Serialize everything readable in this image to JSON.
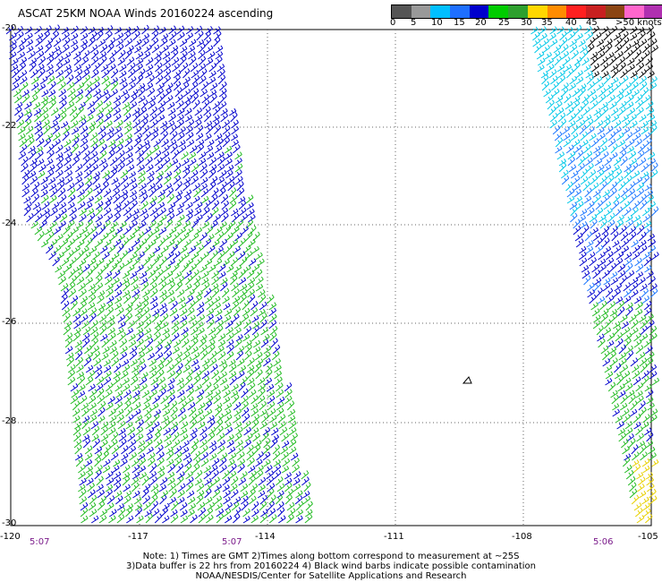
{
  "title": "ASCAT 25KM NOAA Winds 20160224 ascending",
  "legend": {
    "colors": [
      "#555555",
      "#999999",
      "#00bfff",
      "#1e6fff",
      "#0000cd",
      "#00cc00",
      "#2ea02e",
      "#ffd700",
      "#ff8c00",
      "#ff2020",
      "#c82020",
      "#8b4513",
      "#ff66cc",
      "#b030b0",
      "#4b0082"
    ],
    "labels": [
      "0",
      "5",
      "10",
      "15",
      "20",
      "25",
      "30",
      "35",
      "40",
      "45",
      ">50 knots"
    ]
  },
  "lat_labels": [
    "-20",
    "-22",
    "-24",
    "-26",
    "-28",
    "-30"
  ],
  "lon_labels": [
    "-120",
    "-117",
    "-114",
    "-111",
    "-108",
    "-105"
  ],
  "time_labels": [
    "5:07",
    "5:07",
    "5:06"
  ],
  "notes": [
    "Note: 1) Times are GMT 2)Times along bottom correspond to measurement at ~25S",
    "3)Data buffer is 22 hrs from 20160224 4) Black wind barbs indicate possible contamination",
    "NOAA/NESDIS/Center for Satellite Applications and Research"
  ],
  "colors": {
    "blue_barb": "#0000cd",
    "green_barb": "#22bb22",
    "cyan_barb": "#00c8e8",
    "mid_blue_barb": "#1e78ff",
    "black_barb": "#000000",
    "yellow_barb": "#e8d000"
  }
}
